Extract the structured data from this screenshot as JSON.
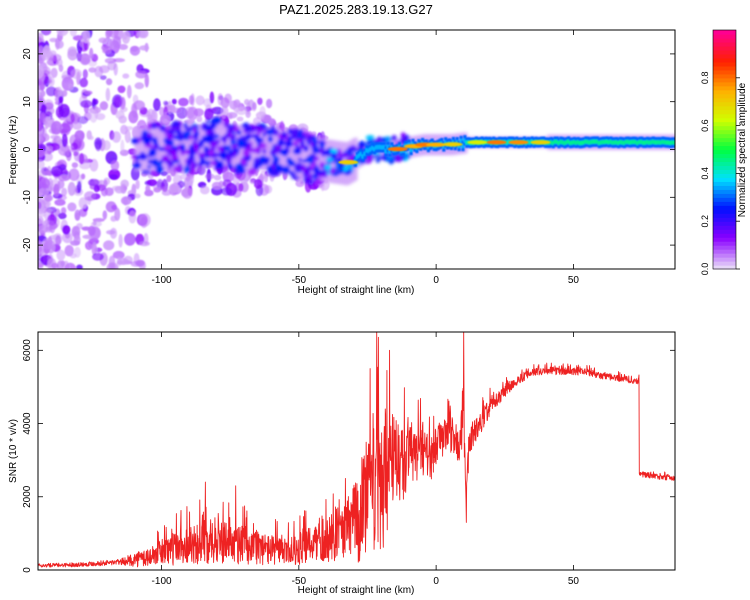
{
  "title": "PAZ1.2025.283.19.13.G27",
  "chart_data": [
    {
      "type": "heatmap",
      "name": "spectrogram",
      "xlabel": "Height of straight line (km)",
      "ylabel": "Frequency (Hz)",
      "xlim": [
        -145,
        87
      ],
      "ylim": [
        -25,
        25
      ],
      "xticks": [
        -100,
        -50,
        0,
        50
      ],
      "xtick_labels": [
        "-100",
        "-50",
        "0",
        "50"
      ],
      "yticks": [
        -20,
        -10,
        0,
        10,
        20
      ],
      "ytick_labels": [
        "-20",
        "-10",
        "0",
        "10",
        "20"
      ],
      "colorbar": {
        "label": "Normalized spectral amplitude",
        "range": [
          0,
          1
        ],
        "ticks": [
          0.0,
          0.2,
          0.4,
          0.6,
          0.8
        ],
        "tick_labels": [
          "0.0",
          "0.2",
          "0.4",
          "0.6",
          "0.8"
        ],
        "colormap": [
          "#e6d6f8",
          "#8a00ff",
          "#0010ff",
          "#00e0ff",
          "#00ff40",
          "#d0ff00",
          "#ffb000",
          "#ff2000",
          "#ff0090"
        ]
      },
      "ridge_center_hz": [
        {
          "x": -105,
          "f": 0
        },
        {
          "x": -80,
          "f": 1
        },
        {
          "x": -60,
          "f": 0
        },
        {
          "x": -45,
          "f": -2
        },
        {
          "x": -33,
          "f": -3
        },
        {
          "x": -24,
          "f": 0
        },
        {
          "x": -15,
          "f": 0
        },
        {
          "x": -5,
          "f": 1
        },
        {
          "x": 0,
          "f": 1
        },
        {
          "x": 5,
          "f": 1
        },
        {
          "x": 12,
          "f": 1.5
        },
        {
          "x": 30,
          "f": 1.5
        },
        {
          "x": 60,
          "f": 1.5
        },
        {
          "x": 87,
          "f": 1.5
        }
      ]
    },
    {
      "type": "line",
      "name": "snr",
      "xlabel": "Height of straight line (km)",
      "ylabel": "SNR (10 * v/v)",
      "xlim": [
        -145,
        87
      ],
      "ylim": [
        0,
        6500
      ],
      "xticks": [
        -100,
        -50,
        0,
        50
      ],
      "xtick_labels": [
        "-100",
        "-50",
        "0",
        "50"
      ],
      "yticks": [
        0,
        2000,
        4000,
        6000
      ],
      "ytick_labels": [
        "0",
        "2000",
        "4000",
        "6000"
      ],
      "color": "#ee2222",
      "series": [
        {
          "name": "SNR",
          "x": [
            -145,
            -130,
            -115,
            -105,
            -100,
            -95,
            -90,
            -85,
            -80,
            -75,
            -70,
            -65,
            -60,
            -55,
            -50,
            -45,
            -40,
            -35,
            -30,
            -27,
            -25,
            -22,
            -20,
            -18,
            -15,
            -12,
            -10,
            -8,
            -5,
            -2,
            0,
            3,
            6,
            8,
            10,
            11,
            12,
            14,
            16,
            20,
            25,
            30,
            35,
            40,
            45,
            50,
            55,
            60,
            65,
            70,
            73,
            74,
            76,
            80,
            87
          ],
          "y": [
            120,
            150,
            220,
            350,
            500,
            600,
            700,
            750,
            800,
            700,
            700,
            600,
            550,
            500,
            550,
            700,
            800,
            900,
            1300,
            1600,
            2200,
            2500,
            2300,
            2600,
            3000,
            2900,
            3200,
            3100,
            3300,
            3000,
            3400,
            3600,
            3700,
            3300,
            3800,
            1900,
            3500,
            3800,
            4000,
            4500,
            4900,
            5200,
            5400,
            5450,
            5430,
            5420,
            5400,
            5300,
            5250,
            5200,
            5150,
            2600,
            2600,
            2550,
            2500
          ],
          "spread": [
            50,
            60,
            80,
            300,
            600,
            800,
            900,
            1000,
            1000,
            900,
            900,
            800,
            700,
            600,
            700,
            900,
            1000,
            1100,
            1800,
            2600,
            3000,
            3300,
            3600,
            3000,
            2200,
            1800,
            1600,
            1400,
            1200,
            1000,
            900,
            800,
            800,
            800,
            1000,
            900,
            700,
            600,
            500,
            400,
            300,
            200,
            180,
            170,
            170,
            160,
            160,
            150,
            150,
            150,
            150,
            120,
            120,
            120,
            120
          ]
        }
      ],
      "annotated_peaks": [
        {
          "x": -84,
          "y": 2400
        },
        {
          "x": -73,
          "y": 2300
        },
        {
          "x": -33,
          "y": 2500
        },
        {
          "x": -24,
          "y": 5500
        },
        {
          "x": -17,
          "y": 6000
        },
        {
          "x": 10,
          "y": 6500
        },
        {
          "x": 11,
          "y": 1300
        }
      ]
    }
  ]
}
